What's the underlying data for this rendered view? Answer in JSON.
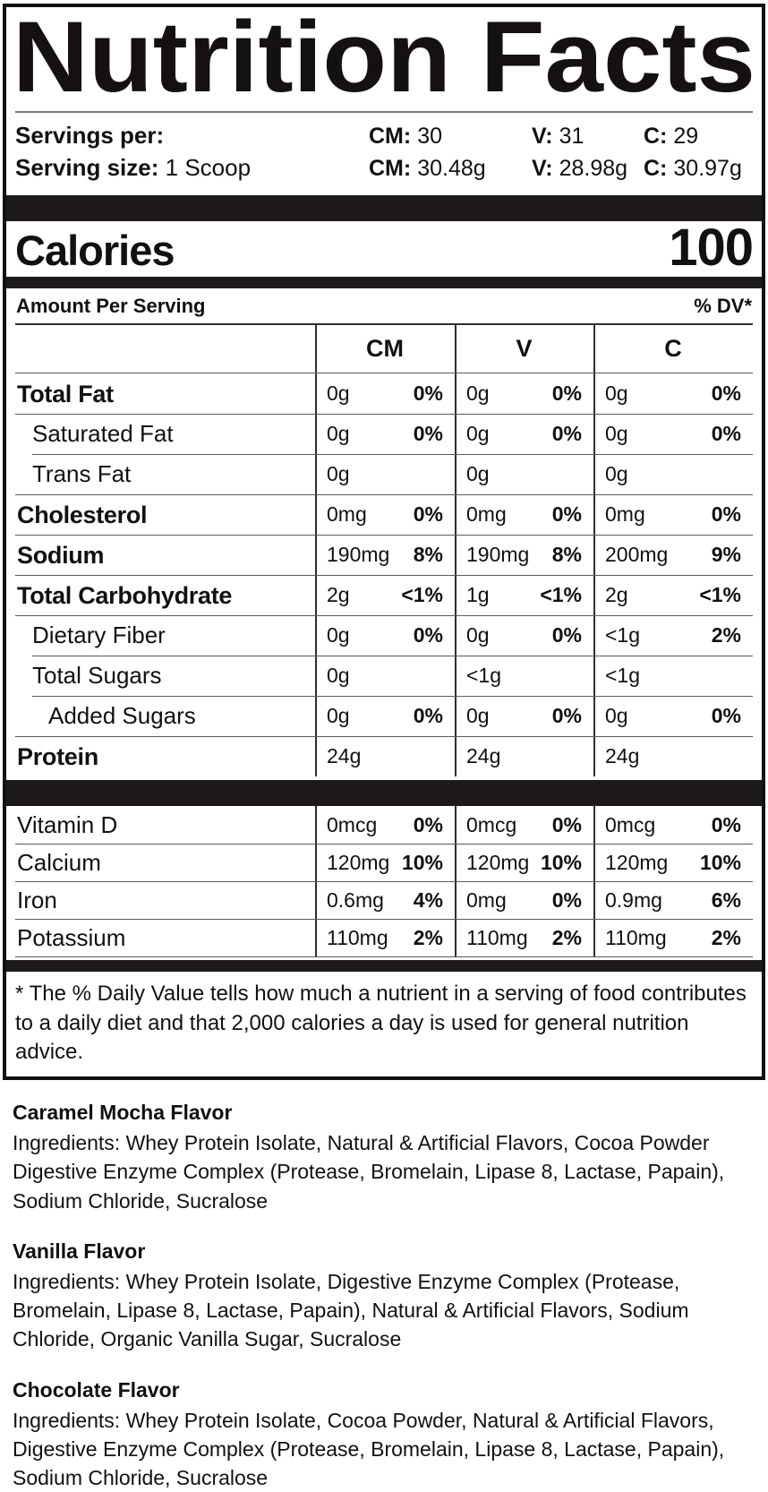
{
  "header": {
    "title": "Nutrition Facts",
    "servings_per": {
      "label": "Servings per:",
      "values": [
        {
          "prefix": "CM:",
          "value": "30"
        },
        {
          "prefix": "V:",
          "value": "31"
        },
        {
          "prefix": "C:",
          "value": "29"
        }
      ]
    },
    "serving_size": {
      "label": "Serving size:",
      "value": "1 Scoop",
      "values": [
        {
          "prefix": "CM:",
          "value": "30.48g"
        },
        {
          "prefix": "V:",
          "value": "28.98g"
        },
        {
          "prefix": "C:",
          "value": "30.97g"
        }
      ]
    }
  },
  "calories": {
    "label": "Calories",
    "value": "100"
  },
  "amount_per_serving": {
    "label": "Amount Per Serving",
    "dv_label": "% DV*"
  },
  "table": {
    "columns": [
      "CM",
      "V",
      "C"
    ],
    "rows": [
      {
        "label": "Total Fat",
        "emphasis": true,
        "indent": 0,
        "cells": [
          {
            "amount": "0g",
            "dv": "0%"
          },
          {
            "amount": "0g",
            "dv": "0%"
          },
          {
            "amount": "0g",
            "dv": "0%"
          }
        ]
      },
      {
        "label": "Saturated Fat",
        "emphasis": false,
        "indent": 1,
        "cells": [
          {
            "amount": "0g",
            "dv": "0%"
          },
          {
            "amount": "0g",
            "dv": "0%"
          },
          {
            "amount": "0g",
            "dv": "0%"
          }
        ]
      },
      {
        "label": "Trans Fat",
        "emphasis": false,
        "indent": 1,
        "cells": [
          {
            "amount": "0g",
            "dv": ""
          },
          {
            "amount": "0g",
            "dv": ""
          },
          {
            "amount": "0g",
            "dv": ""
          }
        ]
      },
      {
        "label": "Cholesterol",
        "emphasis": true,
        "indent": 0,
        "cells": [
          {
            "amount": "0mg",
            "dv": "0%"
          },
          {
            "amount": "0mg",
            "dv": "0%"
          },
          {
            "amount": "0mg",
            "dv": "0%"
          }
        ]
      },
      {
        "label": "Sodium",
        "emphasis": true,
        "indent": 0,
        "cells": [
          {
            "amount": "190mg",
            "dv": "8%"
          },
          {
            "amount": "190mg",
            "dv": "8%"
          },
          {
            "amount": "200mg",
            "dv": "9%"
          }
        ]
      },
      {
        "label": "Total Carbohydrate",
        "emphasis": true,
        "indent": 0,
        "cells": [
          {
            "amount": "2g",
            "dv": "<1%"
          },
          {
            "amount": "1g",
            "dv": "<1%"
          },
          {
            "amount": "2g",
            "dv": "<1%"
          }
        ]
      },
      {
        "label": "Dietary Fiber",
        "emphasis": false,
        "indent": 1,
        "cells": [
          {
            "amount": "0g",
            "dv": "0%"
          },
          {
            "amount": "0g",
            "dv": "0%"
          },
          {
            "amount": "<1g",
            "dv": "2%"
          }
        ]
      },
      {
        "label": "Total Sugars",
        "emphasis": false,
        "indent": 1,
        "cells": [
          {
            "amount": "0g",
            "dv": ""
          },
          {
            "amount": "<1g",
            "dv": ""
          },
          {
            "amount": "<1g",
            "dv": ""
          }
        ]
      },
      {
        "label": "Added Sugars",
        "emphasis": false,
        "indent": 2,
        "cells": [
          {
            "amount": "0g",
            "dv": "0%"
          },
          {
            "amount": "0g",
            "dv": "0%"
          },
          {
            "amount": "0g",
            "dv": "0%"
          }
        ]
      },
      {
        "label": "Protein",
        "emphasis": true,
        "indent": 0,
        "cells": [
          {
            "amount": "24g",
            "dv": ""
          },
          {
            "amount": "24g",
            "dv": ""
          },
          {
            "amount": "24g",
            "dv": ""
          }
        ]
      }
    ]
  },
  "micronutrients": {
    "rows": [
      {
        "label": "Vitamin D",
        "emphasis": false,
        "indent": 0,
        "cells": [
          {
            "amount": "0mcg",
            "dv": "0%"
          },
          {
            "amount": "0mcg",
            "dv": "0%"
          },
          {
            "amount": "0mcg",
            "dv": "0%"
          }
        ]
      },
      {
        "label": "Calcium",
        "emphasis": false,
        "indent": 0,
        "cells": [
          {
            "amount": "120mg",
            "dv": "10%"
          },
          {
            "amount": "120mg",
            "dv": "10%"
          },
          {
            "amount": "120mg",
            "dv": "10%"
          }
        ]
      },
      {
        "label": "Iron",
        "emphasis": false,
        "indent": 0,
        "cells": [
          {
            "amount": "0.6mg",
            "dv": "4%"
          },
          {
            "amount": "0mg",
            "dv": "0%"
          },
          {
            "amount": "0.9mg",
            "dv": "6%"
          }
        ]
      },
      {
        "label": "Potassium",
        "emphasis": false,
        "indent": 0,
        "cells": [
          {
            "amount": "110mg",
            "dv": "2%"
          },
          {
            "amount": "110mg",
            "dv": "2%"
          },
          {
            "amount": "110mg",
            "dv": "2%"
          }
        ]
      }
    ]
  },
  "footnote": "* The % Daily Value tells how much a nutrient in a serving of food contributes to a daily diet and that 2,000 calories a day is used for general nutrition advice.",
  "flavors": [
    {
      "name": "Caramel Mocha Flavor",
      "ingredients": "Ingredients: Whey Protein Isolate, Natural & Artificial Flavors, Cocoa Powder Digestive Enzyme Complex (Protease, Bromelain, Lipase 8, Lactase, Papain), Sodium Chloride, Sucralose"
    },
    {
      "name": "Vanilla Flavor",
      "ingredients": "Ingredients: Whey Protein Isolate, Digestive Enzyme Complex (Protease, Bromelain, Lipase 8, Lactase, Papain), Natural & Artificial Flavors, Sodium Chloride, Organic Vanilla Sugar, Sucralose"
    },
    {
      "name": "Chocolate Flavor",
      "ingredients": "Ingredients: Whey Protein Isolate, Cocoa Powder, Natural & Artificial Flavors, Digestive Enzyme Complex (Protease, Bromelain, Lipase 8, Lactase, Papain), Sodium Chloride, Sucralose"
    }
  ],
  "colors": {
    "text": "#111111",
    "background": "#ffffff",
    "bar": "#1e1a1b"
  }
}
